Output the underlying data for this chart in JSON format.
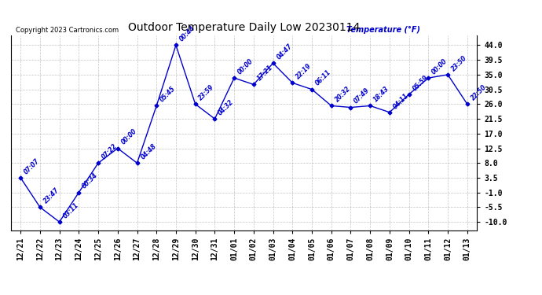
{
  "title": "Outdoor Temperature Daily Low 20230114",
  "ylabel": "Temperature (°F)",
  "copyright": "Copyright 2023 Cartronics.com",
  "background_color": "#ffffff",
  "line_color": "#0000cc",
  "grid_color": "#aaaaaa",
  "dates": [
    "12/21",
    "12/22",
    "12/23",
    "12/24",
    "12/25",
    "12/26",
    "12/27",
    "12/28",
    "12/29",
    "12/30",
    "12/31",
    "01/01",
    "01/02",
    "01/03",
    "01/04",
    "01/05",
    "01/06",
    "01/07",
    "01/08",
    "01/09",
    "01/10",
    "01/11",
    "01/12",
    "01/13"
  ],
  "values": [
    3.5,
    -5.5,
    -10.0,
    -1.0,
    8.0,
    12.5,
    8.0,
    25.5,
    44.0,
    26.0,
    21.5,
    34.0,
    32.0,
    38.5,
    32.5,
    30.5,
    25.5,
    25.0,
    25.5,
    23.5,
    29.0,
    34.0,
    35.0,
    26.0
  ],
  "labels": [
    "07:07",
    "23:47",
    "03:11",
    "00:34",
    "07:22",
    "00:00",
    "04:48",
    "05:45",
    "00:44",
    "23:59",
    "04:32",
    "00:00",
    "17:21",
    "04:47",
    "22:19",
    "06:11",
    "20:32",
    "07:49",
    "18:43",
    "04:11",
    "05:59",
    "00:00",
    "23:50",
    "22:50"
  ],
  "ylim": [
    -12.5,
    47.0
  ],
  "yticks": [
    44.0,
    39.5,
    35.0,
    30.5,
    26.0,
    21.5,
    17.0,
    12.5,
    8.0,
    3.5,
    -1.0,
    -5.5,
    -10.0
  ]
}
